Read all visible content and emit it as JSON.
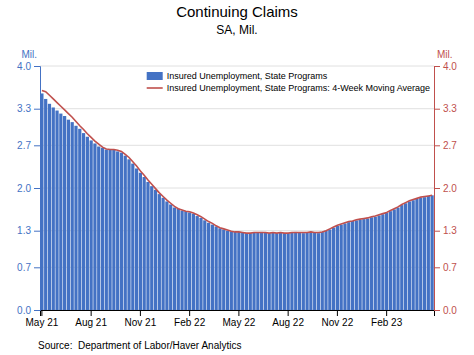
{
  "chart_data": {
    "type": "bar",
    "title": "Continuing Claims",
    "subtitle": "SA, Mil.",
    "y_label": "Mil.",
    "y2_label": "Mil.",
    "source": "Source:  Department of Labor/Haver Analytics",
    "categories": [
      "May 21",
      null,
      null,
      null,
      null,
      null,
      null,
      null,
      null,
      null,
      null,
      null,
      null,
      "Aug 21",
      null,
      null,
      null,
      null,
      null,
      null,
      null,
      null,
      null,
      null,
      null,
      null,
      "Nov 21",
      null,
      null,
      null,
      null,
      null,
      null,
      null,
      null,
      null,
      null,
      null,
      null,
      "Feb 22",
      null,
      null,
      null,
      null,
      null,
      null,
      null,
      null,
      null,
      null,
      null,
      null,
      "May 22",
      null,
      null,
      null,
      null,
      null,
      null,
      null,
      null,
      null,
      null,
      null,
      null,
      "Aug 22",
      null,
      null,
      null,
      null,
      null,
      null,
      null,
      null,
      null,
      null,
      null,
      null,
      "Nov 22",
      null,
      null,
      null,
      null,
      null,
      null,
      null,
      null,
      null,
      null,
      null,
      null,
      "Feb 23",
      null,
      null,
      null,
      null,
      null,
      null,
      null,
      null,
      null,
      null,
      null,
      null
    ],
    "series": [
      {
        "name": "Insured Unemployment, State Programs",
        "type": "bar",
        "color": "#4472C4",
        "values": [
          3.55,
          3.46,
          3.38,
          3.32,
          3.27,
          3.22,
          3.18,
          3.12,
          3.08,
          3.02,
          2.97,
          2.9,
          2.84,
          2.78,
          2.73,
          2.68,
          2.66,
          2.63,
          2.64,
          2.63,
          2.6,
          2.58,
          2.53,
          2.47,
          2.4,
          2.32,
          2.25,
          2.18,
          2.1,
          2.03,
          1.97,
          1.9,
          1.84,
          1.78,
          1.73,
          1.68,
          1.66,
          1.63,
          1.62,
          1.6,
          1.58,
          1.54,
          1.51,
          1.47,
          1.43,
          1.4,
          1.37,
          1.34,
          1.32,
          1.3,
          1.29,
          1.28,
          1.28,
          1.27,
          1.26,
          1.26,
          1.27,
          1.27,
          1.28,
          1.27,
          1.26,
          1.27,
          1.26,
          1.27,
          1.26,
          1.26,
          1.27,
          1.28,
          1.27,
          1.26,
          1.27,
          1.28,
          1.27,
          1.26,
          1.28,
          1.3,
          1.32,
          1.35,
          1.38,
          1.4,
          1.42,
          1.44,
          1.46,
          1.47,
          1.48,
          1.49,
          1.5,
          1.52,
          1.53,
          1.55,
          1.57,
          1.59,
          1.62,
          1.65,
          1.68,
          1.72,
          1.75,
          1.78,
          1.8,
          1.82,
          1.84,
          1.85,
          1.87,
          1.88
        ]
      },
      {
        "name": "Insured Unemployment, State Programs: 4-Week Moving Average",
        "type": "line",
        "color": "#C0504D",
        "axis": "y2",
        "values": [
          3.6,
          3.58,
          3.52,
          3.46,
          3.4,
          3.34,
          3.28,
          3.22,
          3.16,
          3.09,
          3.02,
          2.96,
          2.89,
          2.83,
          2.77,
          2.72,
          2.67,
          2.64,
          2.63,
          2.63,
          2.62,
          2.6,
          2.55,
          2.5,
          2.43,
          2.36,
          2.28,
          2.21,
          2.13,
          2.06,
          1.99,
          1.92,
          1.86,
          1.8,
          1.75,
          1.7,
          1.66,
          1.64,
          1.62,
          1.61,
          1.59,
          1.56,
          1.53,
          1.49,
          1.45,
          1.42,
          1.38,
          1.35,
          1.33,
          1.31,
          1.29,
          1.28,
          1.28,
          1.27,
          1.26,
          1.26,
          1.27,
          1.27,
          1.27,
          1.27,
          1.26,
          1.27,
          1.26,
          1.27,
          1.26,
          1.26,
          1.27,
          1.27,
          1.27,
          1.27,
          1.27,
          1.28,
          1.27,
          1.27,
          1.28,
          1.3,
          1.33,
          1.36,
          1.39,
          1.41,
          1.43,
          1.45,
          1.46,
          1.48,
          1.49,
          1.5,
          1.51,
          1.53,
          1.54,
          1.56,
          1.58,
          1.6,
          1.63,
          1.66,
          1.69,
          1.73,
          1.76,
          1.79,
          1.81,
          1.83,
          1.85,
          1.86,
          1.87,
          1.88
        ]
      }
    ],
    "ylim": [
      0.0,
      4.0
    ],
    "yticks": [
      {
        "value": 0.0,
        "label": "0.0"
      },
      0.7,
      1.3,
      {
        "value": 2.0,
        "label": "2.0"
      },
      2.7,
      3.3,
      {
        "value": 4.0,
        "label": "4.0"
      }
    ],
    "y2lim": [
      0.0,
      4.0
    ],
    "y2ticks": [
      {
        "value": 0.0,
        "label": "0.0"
      },
      0.7,
      1.3,
      {
        "value": 2.0,
        "label": "2.0"
      },
      2.7,
      3.3,
      {
        "value": 4.0,
        "label": "4.0"
      }
    ],
    "grid": true,
    "legend": "upper right"
  }
}
